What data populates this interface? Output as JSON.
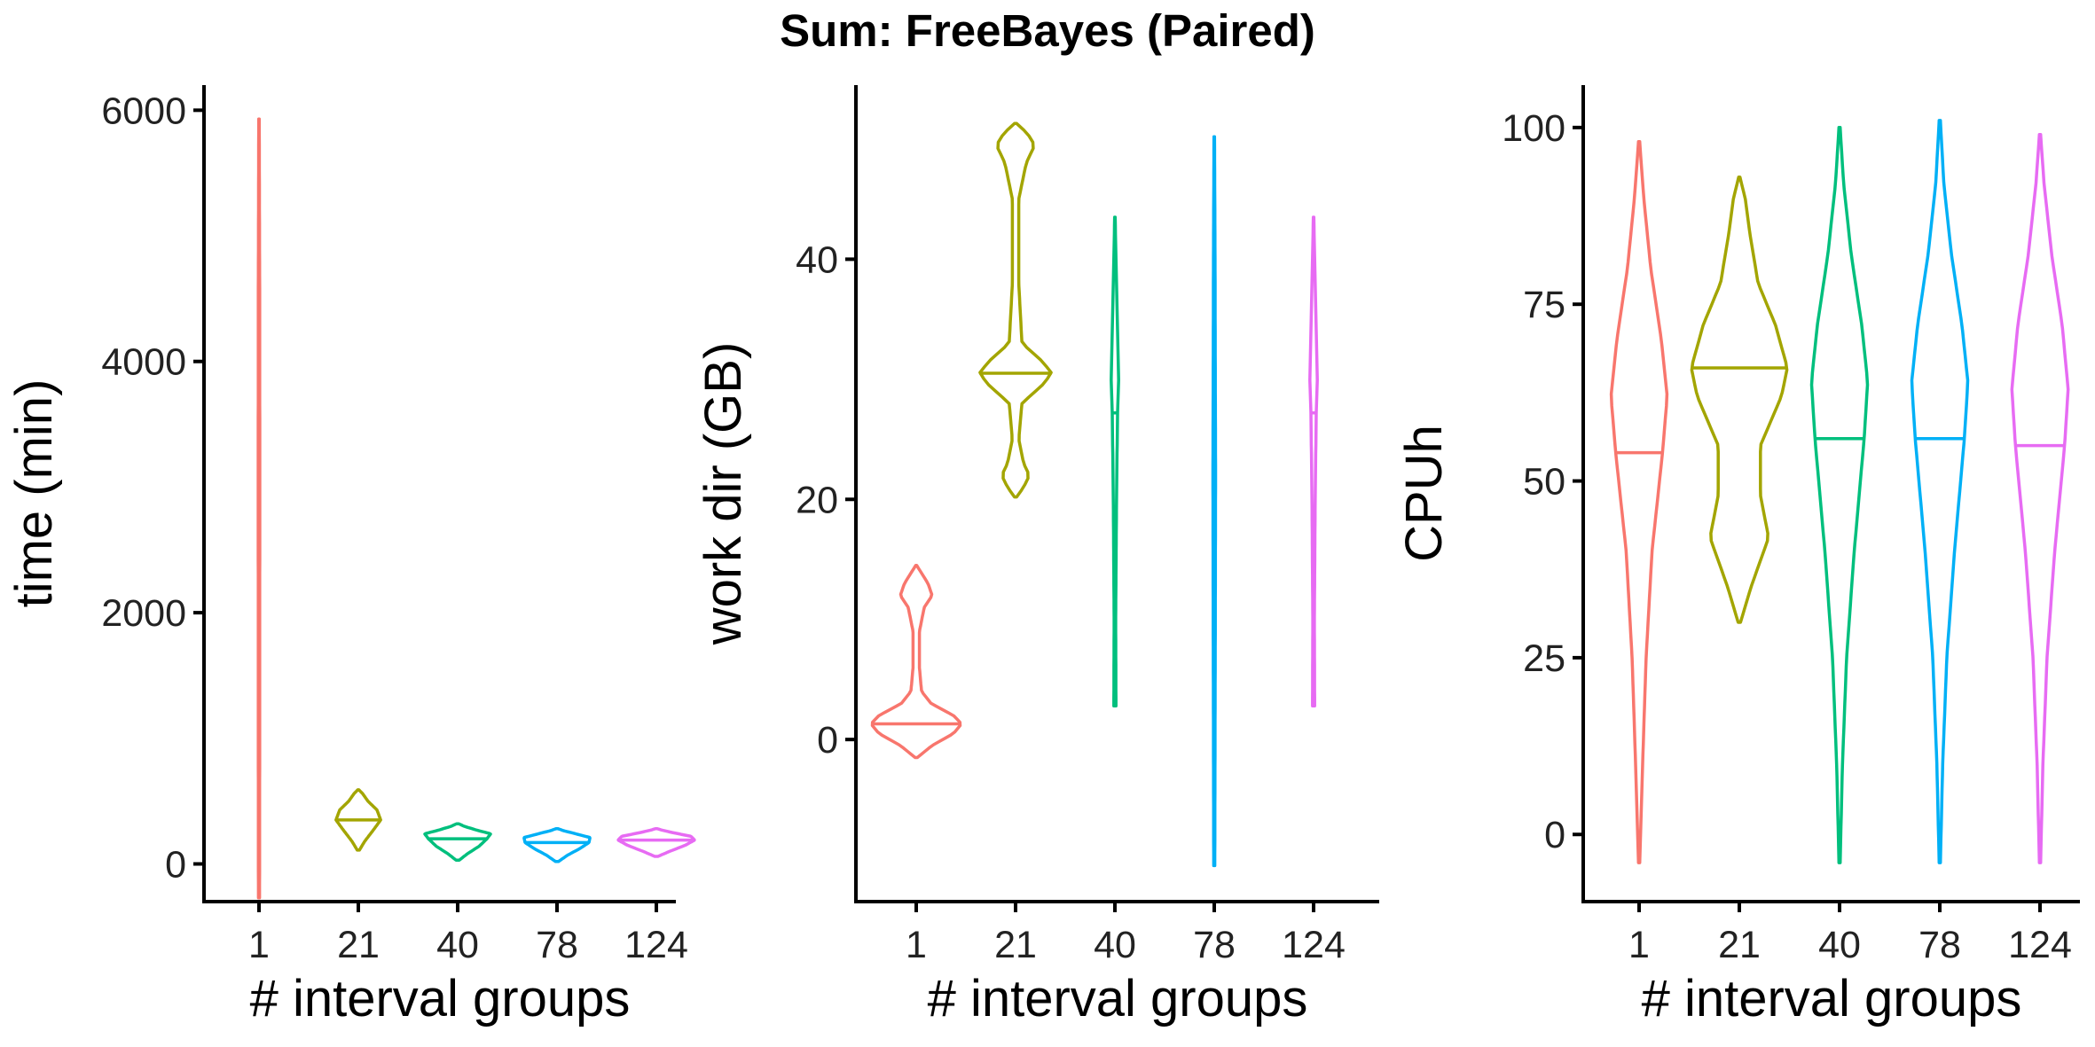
{
  "figure": {
    "title": "Sum: FreeBayes (Paired)"
  },
  "chart_data": [
    {
      "type": "violin",
      "xlabel": "# interval groups",
      "ylabel": "time (min)",
      "categories": [
        "1",
        "21",
        "40",
        "78",
        "124"
      ],
      "ylim": [
        -300,
        6200
      ],
      "yticks": [
        0,
        2000,
        4000,
        6000
      ],
      "grid": false,
      "legend": "none",
      "violins": [
        {
          "category": "1",
          "color": "#F8766D",
          "min": -270,
          "max": 5930,
          "median": 3000,
          "profile": [
            [
              -270,
              0.01
            ],
            [
              0,
              0.012
            ],
            [
              1500,
              0.013
            ],
            [
              3000,
              0.015
            ],
            [
              4500,
              0.013
            ],
            [
              5930,
              0.005
            ]
          ]
        },
        {
          "category": "21",
          "color": "#A3A500",
          "min": 110,
          "max": 590,
          "median": 350,
          "profile": [
            [
              110,
              0.02
            ],
            [
              180,
              0.12
            ],
            [
              280,
              0.3
            ],
            [
              350,
              0.42
            ],
            [
              430,
              0.35
            ],
            [
              500,
              0.18
            ],
            [
              560,
              0.08
            ],
            [
              590,
              0.01
            ]
          ]
        },
        {
          "category": "40",
          "color": "#00BF7D",
          "min": 30,
          "max": 320,
          "median": 200,
          "profile": [
            [
              30,
              0.03
            ],
            [
              80,
              0.18
            ],
            [
              140,
              0.4
            ],
            [
              200,
              0.55
            ],
            [
              240,
              0.62
            ],
            [
              270,
              0.35
            ],
            [
              300,
              0.12
            ],
            [
              320,
              0.02
            ]
          ]
        },
        {
          "category": "78",
          "color": "#00B0F6",
          "min": 20,
          "max": 280,
          "median": 170,
          "profile": [
            [
              20,
              0.03
            ],
            [
              70,
              0.2
            ],
            [
              120,
              0.42
            ],
            [
              170,
              0.6
            ],
            [
              210,
              0.62
            ],
            [
              240,
              0.35
            ],
            [
              265,
              0.12
            ],
            [
              280,
              0.02
            ]
          ]
        },
        {
          "category": "124",
          "color": "#E76BF3",
          "min": 60,
          "max": 280,
          "median": 190,
          "profile": [
            [
              60,
              0.03
            ],
            [
              100,
              0.25
            ],
            [
              150,
              0.55
            ],
            [
              190,
              0.72
            ],
            [
              220,
              0.65
            ],
            [
              250,
              0.3
            ],
            [
              270,
              0.1
            ],
            [
              280,
              0.02
            ]
          ]
        }
      ]
    },
    {
      "type": "violin",
      "xlabel": "# interval groups",
      "ylabel": "work dir (GB)",
      "categories": [
        "1",
        "21",
        "40",
        "78",
        "124"
      ],
      "ylim": [
        -13.5,
        54.5
      ],
      "yticks": [
        0,
        20,
        40
      ],
      "grid": false,
      "legend": "none",
      "violins": [
        {
          "category": "1",
          "color": "#F8766D",
          "min": -1.5,
          "max": 14.5,
          "median": 1.3,
          "profile": [
            [
              -1.5,
              0.02
            ],
            [
              -0.5,
              0.3
            ],
            [
              0.5,
              0.7
            ],
            [
              1.3,
              0.85
            ],
            [
              2,
              0.7
            ],
            [
              3,
              0.28
            ],
            [
              4,
              0.1
            ],
            [
              6,
              0.06
            ],
            [
              9,
              0.06
            ],
            [
              11,
              0.15
            ],
            [
              12,
              0.3
            ],
            [
              13,
              0.22
            ],
            [
              14,
              0.08
            ],
            [
              14.5,
              0.01
            ]
          ]
        },
        {
          "category": "21",
          "color": "#A3A500",
          "min": 20.2,
          "max": 51.3,
          "median": 30.5,
          "profile": [
            [
              20.2,
              0.02
            ],
            [
              21,
              0.15
            ],
            [
              22,
              0.26
            ],
            [
              23,
              0.15
            ],
            [
              25,
              0.06
            ],
            [
              28,
              0.12
            ],
            [
              29.5,
              0.5
            ],
            [
              30.5,
              0.68
            ],
            [
              31.5,
              0.5
            ],
            [
              33,
              0.12
            ],
            [
              38,
              0.06
            ],
            [
              45,
              0.06
            ],
            [
              48,
              0.2
            ],
            [
              49.5,
              0.36
            ],
            [
              50.5,
              0.22
            ],
            [
              51.3,
              0.02
            ]
          ]
        },
        {
          "category": "40",
          "color": "#00BF7D",
          "min": 2.8,
          "max": 43.5,
          "median": 27.2,
          "profile": [
            [
              2.8,
              0.02
            ],
            [
              10,
              0.015
            ],
            [
              20,
              0.03
            ],
            [
              27.2,
              0.05
            ],
            [
              30,
              0.07
            ],
            [
              35,
              0.045
            ],
            [
              40,
              0.02
            ],
            [
              43.5,
              0.005
            ]
          ]
        },
        {
          "category": "78",
          "color": "#00B0F6",
          "min": -10.5,
          "max": 50.2,
          "median": 22.2,
          "profile": [
            [
              -10.5,
              0.01
            ],
            [
              0,
              0.015
            ],
            [
              10,
              0.02
            ],
            [
              22.2,
              0.025
            ],
            [
              30,
              0.02
            ],
            [
              40,
              0.015
            ],
            [
              50.2,
              0.005
            ]
          ]
        },
        {
          "category": "124",
          "color": "#E76BF3",
          "min": 2.8,
          "max": 43.5,
          "median": 27.2,
          "profile": [
            [
              2.8,
              0.02
            ],
            [
              10,
              0.015
            ],
            [
              20,
              0.03
            ],
            [
              27.2,
              0.05
            ],
            [
              30,
              0.07
            ],
            [
              35,
              0.045
            ],
            [
              40,
              0.02
            ],
            [
              43.5,
              0.005
            ]
          ]
        }
      ]
    },
    {
      "type": "violin",
      "xlabel": "# interval groups",
      "ylabel": "CPUh",
      "categories": [
        "1",
        "21",
        "40",
        "78",
        "124"
      ],
      "ylim": [
        -9.5,
        106
      ],
      "yticks": [
        0,
        25,
        50,
        75,
        100
      ],
      "grid": false,
      "legend": "none",
      "violins": [
        {
          "category": "1",
          "color": "#F8766D",
          "min": -4,
          "max": 98,
          "median": 54,
          "profile": [
            [
              -4,
              0.01
            ],
            [
              10,
              0.06
            ],
            [
              25,
              0.12
            ],
            [
              40,
              0.22
            ],
            [
              54,
              0.4
            ],
            [
              62,
              0.48
            ],
            [
              70,
              0.38
            ],
            [
              80,
              0.2
            ],
            [
              90,
              0.08
            ],
            [
              98,
              0.01
            ]
          ]
        },
        {
          "category": "21",
          "color": "#A3A500",
          "min": 30,
          "max": 93,
          "median": 66,
          "profile": [
            [
              30,
              0.02
            ],
            [
              35,
              0.2
            ],
            [
              42,
              0.5
            ],
            [
              48,
              0.36
            ],
            [
              55,
              0.36
            ],
            [
              62,
              0.72
            ],
            [
              66,
              0.82
            ],
            [
              72,
              0.62
            ],
            [
              78,
              0.32
            ],
            [
              85,
              0.18
            ],
            [
              90,
              0.1
            ],
            [
              93,
              0.01
            ]
          ]
        },
        {
          "category": "40",
          "color": "#00BF7D",
          "min": -4,
          "max": 100,
          "median": 56,
          "profile": [
            [
              -4,
              0.01
            ],
            [
              10,
              0.05
            ],
            [
              25,
              0.12
            ],
            [
              40,
              0.25
            ],
            [
              56,
              0.42
            ],
            [
              64,
              0.48
            ],
            [
              72,
              0.38
            ],
            [
              82,
              0.2
            ],
            [
              92,
              0.07
            ],
            [
              100,
              0.01
            ]
          ]
        },
        {
          "category": "78",
          "color": "#00B0F6",
          "min": -4,
          "max": 101,
          "median": 56,
          "profile": [
            [
              -4,
              0.01
            ],
            [
              10,
              0.05
            ],
            [
              25,
              0.12
            ],
            [
              40,
              0.25
            ],
            [
              56,
              0.42
            ],
            [
              64,
              0.48
            ],
            [
              72,
              0.38
            ],
            [
              82,
              0.2
            ],
            [
              92,
              0.07
            ],
            [
              101,
              0.01
            ]
          ]
        },
        {
          "category": "124",
          "color": "#E76BF3",
          "min": -4,
          "max": 99,
          "median": 55,
          "profile": [
            [
              -4,
              0.01
            ],
            [
              10,
              0.05
            ],
            [
              25,
              0.12
            ],
            [
              40,
              0.25
            ],
            [
              55,
              0.42
            ],
            [
              63,
              0.48
            ],
            [
              72,
              0.38
            ],
            [
              82,
              0.2
            ],
            [
              92,
              0.07
            ],
            [
              99,
              0.01
            ]
          ]
        }
      ]
    }
  ]
}
